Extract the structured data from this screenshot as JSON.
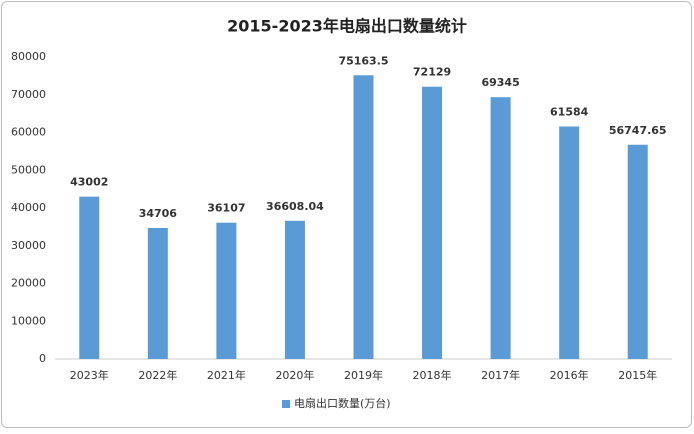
{
  "chart_data": {
    "type": "bar",
    "title": "2015-2023年电扇出口数量统计",
    "categories": [
      "2023年",
      "2022年",
      "2021年",
      "2020年",
      "2019年",
      "2018年",
      "2017年",
      "2016年",
      "2015年"
    ],
    "series": [
      {
        "name": "电扇出口数量(万台)",
        "color": "#5b9bd5",
        "values": [
          43002,
          34706,
          36107,
          36608.04,
          75163.5,
          72129,
          69345,
          61584,
          56747.65
        ]
      }
    ],
    "ylim": [
      0,
      80000
    ],
    "yticks": [
      0,
      10000,
      20000,
      30000,
      40000,
      50000,
      60000,
      70000,
      80000
    ],
    "grid": false,
    "legend": "bottom"
  }
}
